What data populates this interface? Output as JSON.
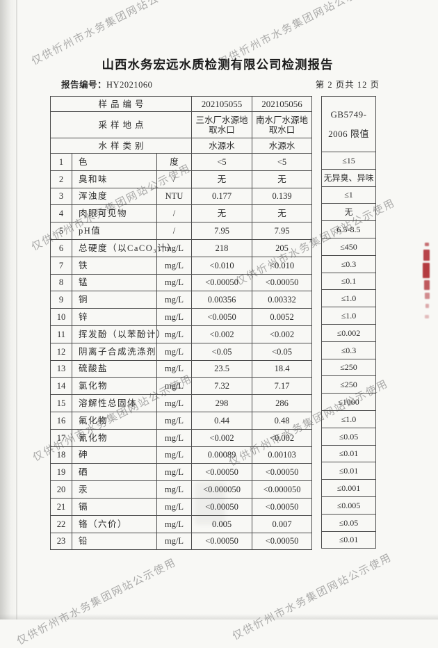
{
  "page": {
    "title": "山西水务宏远水质检测有限公司检测报告",
    "report_no_label": "报告编号：",
    "report_no_value": "HY2021060",
    "page_indicator": "第 2 页共 12 页"
  },
  "watermark": {
    "text": "仅供忻州市水务集团网站公示使用"
  },
  "colors": {
    "stamp_red": "#b03036",
    "watermark_gray": "#6c6c6c"
  },
  "table": {
    "header": {
      "sample_no_label": "样品编号",
      "sample_no_1": "202105055",
      "sample_no_2": "202105056",
      "location_label": "采样地点",
      "location_1": "三水厂水源地取水口",
      "location_2": "南水厂水源地取水口",
      "type_label": "水样类别",
      "type_1": "水源水",
      "type_2": "水源水"
    },
    "limit_std": {
      "line1": "GB5749-",
      "line2": "2006 限值"
    },
    "rows": [
      {
        "no": "1",
        "item": "色",
        "unit": "度",
        "v1": "<5",
        "v2": "<5",
        "limit": "≤15"
      },
      {
        "no": "2",
        "item": "臭和味",
        "unit": "/",
        "v1": "无",
        "v2": "无",
        "limit": "无异臭、异味"
      },
      {
        "no": "3",
        "item": "浑浊度",
        "unit": "NTU",
        "v1": "0.177",
        "v2": "0.139",
        "limit": "≤1"
      },
      {
        "no": "4",
        "item": "肉眼可见物",
        "unit": "/",
        "v1": "无",
        "v2": "无",
        "limit": "无"
      },
      {
        "no": "5",
        "item": "pH值",
        "unit": "/",
        "v1": "7.95",
        "v2": "7.95",
        "limit": "6.5-8.5"
      },
      {
        "no": "6",
        "item": "总硬度（以CaCO₃计）",
        "unit": "mg/L",
        "v1": "218",
        "v2": "205",
        "limit": "≤450"
      },
      {
        "no": "7",
        "item": "铁",
        "unit": "mg/L",
        "v1": "<0.010",
        "v2": "<0.010",
        "limit": "≤0.3"
      },
      {
        "no": "8",
        "item": "锰",
        "unit": "mg/L",
        "v1": "<0.00050",
        "v2": "<0.00050",
        "limit": "≤0.1"
      },
      {
        "no": "9",
        "item": "铜",
        "unit": "mg/L",
        "v1": "0.00356",
        "v2": "0.00332",
        "limit": "≤1.0"
      },
      {
        "no": "10",
        "item": "锌",
        "unit": "mg/L",
        "v1": "<0.0050",
        "v2": "0.0052",
        "limit": "≤1.0"
      },
      {
        "no": "11",
        "item": "挥发酚（以苯酚计）",
        "unit": "mg/L",
        "v1": "<0.002",
        "v2": "<0.002",
        "limit": "≤0.002"
      },
      {
        "no": "12",
        "item": "阴离子合成洗涤剂",
        "unit": "mg/L",
        "v1": "<0.05",
        "v2": "<0.05",
        "limit": "≤0.3"
      },
      {
        "no": "13",
        "item": "硫酸盐",
        "unit": "mg/L",
        "v1": "23.5",
        "v2": "18.4",
        "limit": "≤250"
      },
      {
        "no": "14",
        "item": "氯化物",
        "unit": "mg/L",
        "v1": "7.32",
        "v2": "7.17",
        "limit": "≤250"
      },
      {
        "no": "15",
        "item": "溶解性总固体",
        "unit": "mg/L",
        "v1": "298",
        "v2": "286",
        "limit": "≤1000"
      },
      {
        "no": "16",
        "item": "氟化物",
        "unit": "mg/L",
        "v1": "0.44",
        "v2": "0.48",
        "limit": "≤1.0"
      },
      {
        "no": "17",
        "item": "氰化物",
        "unit": "mg/L",
        "v1": "<0.002",
        "v2": "<0.002",
        "limit": "≤0.05"
      },
      {
        "no": "18",
        "item": "砷",
        "unit": "mg/L",
        "v1": "0.00089",
        "v2": "0.00103",
        "limit": "≤0.01"
      },
      {
        "no": "19",
        "item": "硒",
        "unit": "mg/L",
        "v1": "<0.00050",
        "v2": "<0.00050",
        "limit": "≤0.01"
      },
      {
        "no": "20",
        "item": "汞",
        "unit": "mg/L",
        "v1": "<0.000050",
        "v2": "<0.000050",
        "limit": "≤0.001"
      },
      {
        "no": "21",
        "item": "镉",
        "unit": "mg/L",
        "v1": "<0.00050",
        "v2": "<0.00050",
        "limit": "≤0.005"
      },
      {
        "no": "22",
        "item": "铬（六价）",
        "unit": "mg/L",
        "v1": "0.005",
        "v2": "0.007",
        "limit": "≤0.05"
      },
      {
        "no": "23",
        "item": "铅",
        "unit": "mg/L",
        "v1": "<0.00050",
        "v2": "<0.00050",
        "limit": "≤0.01"
      }
    ]
  }
}
